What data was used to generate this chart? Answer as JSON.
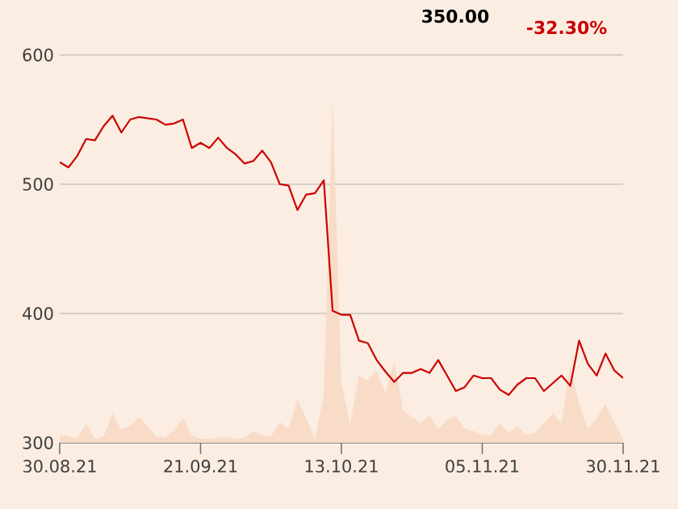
{
  "chart_data": {
    "type": "line",
    "categories": [
      "30.08.21",
      null,
      null,
      null,
      null,
      null,
      null,
      null,
      null,
      null,
      null,
      null,
      null,
      null,
      null,
      null,
      "21.09.21",
      null,
      null,
      null,
      null,
      null,
      null,
      null,
      null,
      null,
      null,
      null,
      null,
      null,
      null,
      null,
      "13.10.21",
      null,
      null,
      null,
      null,
      null,
      null,
      null,
      null,
      null,
      null,
      null,
      null,
      null,
      null,
      null,
      "05.11.21",
      null,
      null,
      null,
      null,
      null,
      null,
      null,
      null,
      null,
      null,
      null,
      null,
      null,
      null,
      null,
      "30.11.21"
    ],
    "series": [
      {
        "type": "area",
        "color": "#f8dcc7",
        "values": [
          306,
          305,
          303,
          315,
          303,
          305,
          323,
          310,
          313,
          320,
          313,
          305,
          304,
          310,
          319,
          306,
          303,
          303,
          304,
          304,
          303,
          304,
          309,
          306,
          305,
          316,
          311,
          334,
          319,
          303,
          336,
          566,
          346,
          315,
          352,
          348,
          356,
          338,
          363,
          325,
          320,
          315,
          321,
          310,
          318,
          321,
          311,
          309,
          306,
          306,
          315,
          308,
          313,
          306,
          308,
          315,
          323,
          315,
          359,
          330,
          311,
          319,
          330,
          316,
          303
        ]
      },
      {
        "color": "#cc0000",
        "values": [
          517,
          513,
          522,
          535,
          534,
          545,
          553,
          540,
          550,
          552,
          551,
          550,
          546,
          547,
          550,
          528,
          532,
          528,
          536,
          528,
          523,
          516,
          518,
          526,
          517,
          500,
          499,
          480,
          492,
          493,
          503,
          402,
          399,
          399,
          379,
          377,
          364,
          355,
          347,
          354,
          354,
          357,
          354,
          364,
          352,
          340,
          343,
          352,
          350,
          350,
          341,
          337,
          345,
          350,
          350,
          340,
          346,
          352,
          344,
          379,
          361,
          352,
          369,
          356,
          350
        ]
      }
    ],
    "ylim": [
      300,
      600
    ],
    "yticks": [
      300,
      400,
      500,
      600
    ],
    "grid": "y",
    "annotations": [
      "350.00",
      "-32.30%"
    ]
  }
}
